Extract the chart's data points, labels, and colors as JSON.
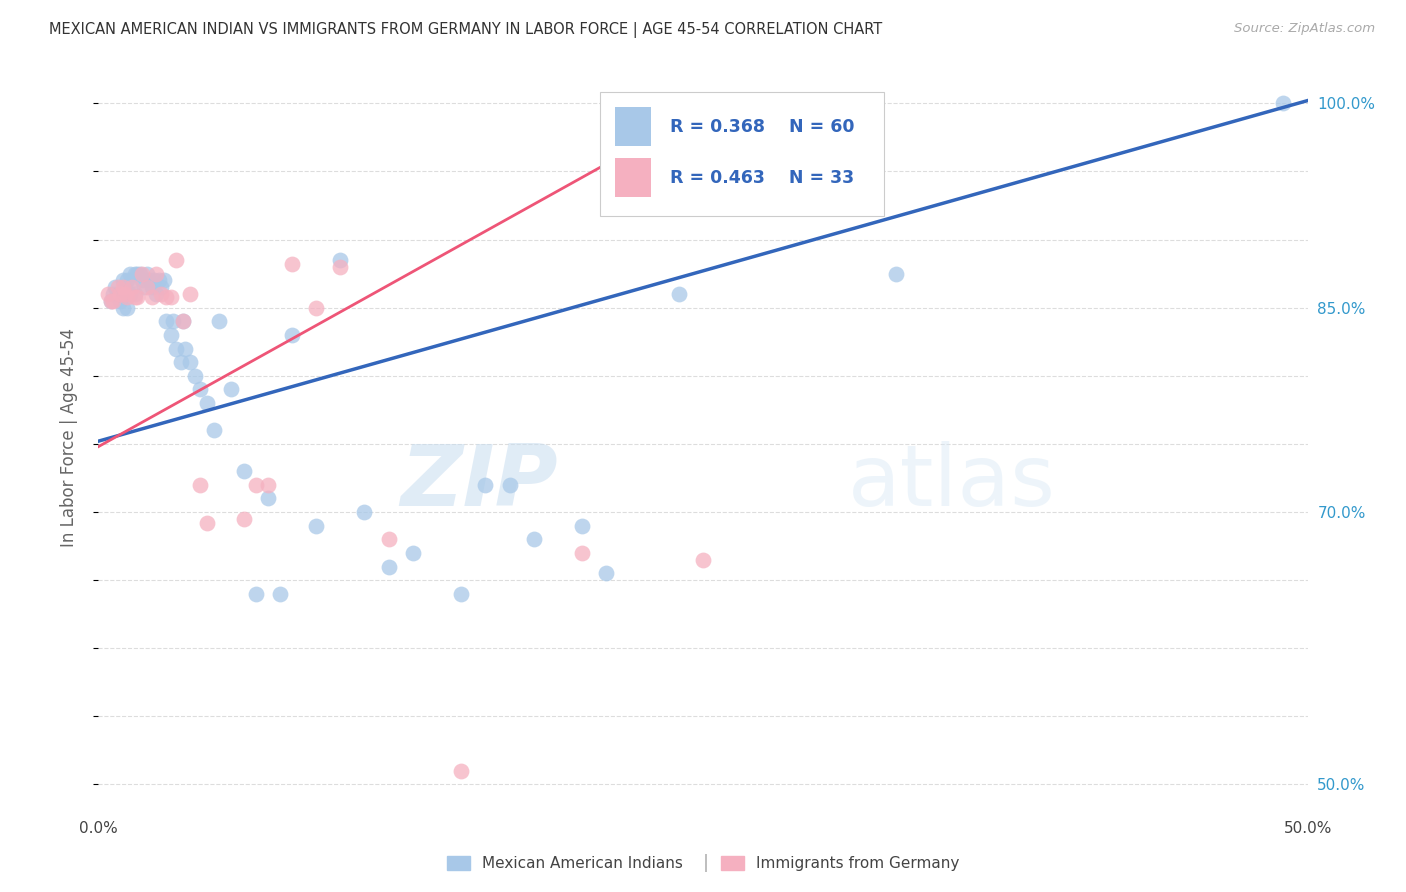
{
  "title": "MEXICAN AMERICAN INDIAN VS IMMIGRANTS FROM GERMANY IN LABOR FORCE | AGE 45-54 CORRELATION CHART",
  "source": "Source: ZipAtlas.com",
  "ylabel": "In Labor Force | Age 45-54",
  "xlim": [
    0.0,
    0.5
  ],
  "ylim": [
    0.48,
    1.03
  ],
  "blue_R": 0.368,
  "blue_N": 60,
  "pink_R": 0.463,
  "pink_N": 33,
  "blue_color": "#a8c8e8",
  "pink_color": "#f5b0c0",
  "blue_line_color": "#3366bb",
  "pink_line_color": "#ee5577",
  "legend_label_blue": "Mexican American Indians",
  "legend_label_pink": "Immigrants from Germany",
  "blue_scatter_x": [
    0.005,
    0.006,
    0.007,
    0.008,
    0.009,
    0.01,
    0.01,
    0.011,
    0.012,
    0.012,
    0.013,
    0.013,
    0.014,
    0.015,
    0.015,
    0.016,
    0.017,
    0.018,
    0.019,
    0.02,
    0.021,
    0.022,
    0.023,
    0.024,
    0.025,
    0.026,
    0.027,
    0.028,
    0.03,
    0.031,
    0.032,
    0.034,
    0.035,
    0.036,
    0.038,
    0.04,
    0.042,
    0.045,
    0.048,
    0.05,
    0.055,
    0.06,
    0.065,
    0.07,
    0.075,
    0.08,
    0.09,
    0.1,
    0.11,
    0.12,
    0.13,
    0.15,
    0.16,
    0.17,
    0.18,
    0.2,
    0.21,
    0.24,
    0.33,
    0.49
  ],
  "blue_scatter_y": [
    0.855,
    0.86,
    0.865,
    0.86,
    0.855,
    0.87,
    0.85,
    0.865,
    0.87,
    0.85,
    0.875,
    0.86,
    0.87,
    0.875,
    0.86,
    0.875,
    0.875,
    0.87,
    0.865,
    0.875,
    0.87,
    0.865,
    0.87,
    0.86,
    0.87,
    0.865,
    0.87,
    0.84,
    0.83,
    0.84,
    0.82,
    0.81,
    0.84,
    0.82,
    0.81,
    0.8,
    0.79,
    0.78,
    0.76,
    0.84,
    0.79,
    0.73,
    0.64,
    0.71,
    0.64,
    0.83,
    0.69,
    0.885,
    0.7,
    0.66,
    0.67,
    0.64,
    0.72,
    0.72,
    0.68,
    0.69,
    0.655,
    0.86,
    0.875,
    1.0
  ],
  "pink_scatter_x": [
    0.004,
    0.005,
    0.006,
    0.008,
    0.009,
    0.01,
    0.011,
    0.012,
    0.014,
    0.015,
    0.016,
    0.018,
    0.02,
    0.022,
    0.024,
    0.026,
    0.028,
    0.03,
    0.032,
    0.035,
    0.038,
    0.042,
    0.045,
    0.06,
    0.065,
    0.07,
    0.08,
    0.09,
    0.1,
    0.12,
    0.15,
    0.2,
    0.25
  ],
  "pink_scatter_y": [
    0.86,
    0.855,
    0.855,
    0.865,
    0.86,
    0.865,
    0.86,
    0.858,
    0.865,
    0.858,
    0.858,
    0.875,
    0.865,
    0.858,
    0.875,
    0.86,
    0.858,
    0.858,
    0.885,
    0.84,
    0.86,
    0.72,
    0.692,
    0.695,
    0.72,
    0.72,
    0.882,
    0.85,
    0.88,
    0.68,
    0.51,
    0.67,
    0.665
  ],
  "blue_line_x0": 0.0,
  "blue_line_y0": 0.752,
  "blue_line_x1": 0.5,
  "blue_line_y1": 1.002,
  "pink_line_x0": 0.0,
  "pink_line_y0": 0.748,
  "pink_line_x1": 0.25,
  "pink_line_y1": 0.995,
  "watermark_text": "ZIPatlas",
  "background_color": "#ffffff",
  "grid_color": "#dddddd",
  "title_color": "#333333",
  "axis_label_color": "#666666",
  "right_tick_color": "#3399cc",
  "source_color": "#aaaaaa"
}
